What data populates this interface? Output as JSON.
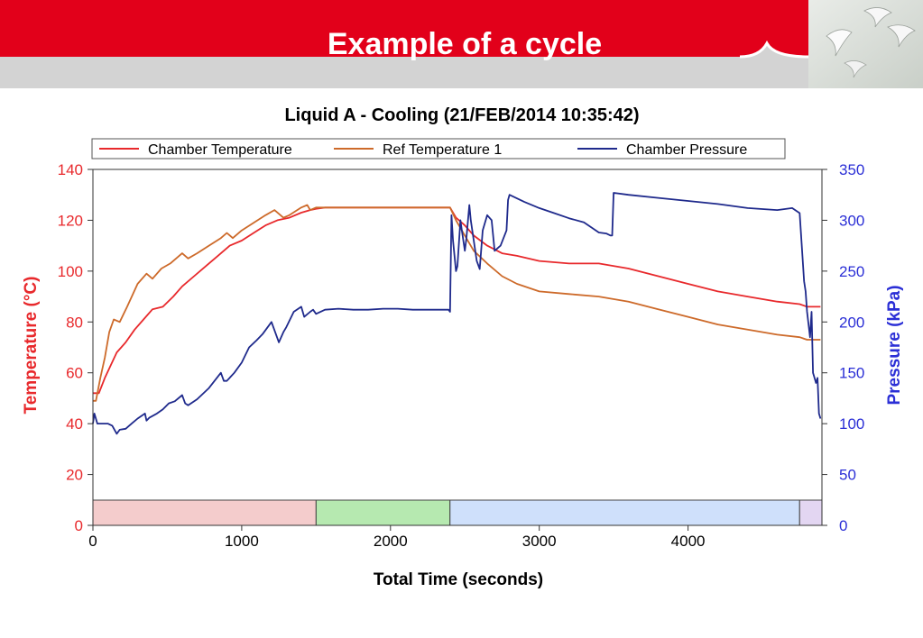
{
  "slide": {
    "title": "Example of a cycle",
    "header_color": "#e2001a",
    "band_color": "#d3d3d3"
  },
  "chart_data": {
    "type": "line",
    "title": "Liquid A - Cooling (21/FEB/2014 10:35:42)",
    "xlabel": "Total Time (seconds)",
    "ylabel": "Temperature (°C)",
    "y2label": "Pressure (kPa)",
    "xlim": [
      0,
      4900
    ],
    "ylim": [
      0,
      140
    ],
    "y2lim": [
      0,
      350
    ],
    "xticks": [
      0,
      1000,
      2000,
      3000,
      4000
    ],
    "yticks": [
      0,
      20,
      40,
      60,
      80,
      100,
      120,
      140
    ],
    "y2ticks": [
      0,
      50,
      100,
      150,
      200,
      250,
      300,
      350
    ],
    "legend_position": "top",
    "grid": false,
    "series": [
      {
        "name": "Chamber Temperature",
        "axis": "left",
        "color": "#e8292c",
        "x": [
          0,
          40,
          80,
          120,
          160,
          220,
          280,
          340,
          400,
          470,
          540,
          600,
          680,
          760,
          840,
          920,
          1000,
          1080,
          1160,
          1240,
          1320,
          1400,
          1460,
          1500,
          1560,
          1700,
          1900,
          2100,
          2300,
          2400,
          2440,
          2500,
          2560,
          2650,
          2750,
          2850,
          3000,
          3200,
          3400,
          3600,
          3800,
          4000,
          4200,
          4400,
          4600,
          4750,
          4800,
          4850,
          4890
        ],
        "y": [
          52,
          52,
          58,
          63,
          68,
          72,
          77,
          81,
          85,
          86,
          90,
          94,
          98,
          102,
          106,
          110,
          112,
          115,
          118,
          120,
          121,
          123,
          124,
          124.5,
          125,
          125,
          125,
          125,
          125,
          125,
          121,
          118,
          114,
          110,
          107,
          106,
          104,
          103,
          103,
          101,
          98,
          95,
          92,
          90,
          88,
          87,
          86,
          86,
          86
        ]
      },
      {
        "name": "Ref Temperature 1",
        "axis": "left",
        "color": "#cd6a2a",
        "x": [
          0,
          20,
          50,
          80,
          110,
          140,
          180,
          230,
          300,
          360,
          400,
          460,
          520,
          600,
          640,
          700,
          780,
          860,
          900,
          940,
          1000,
          1080,
          1160,
          1220,
          1280,
          1320,
          1400,
          1440,
          1460,
          1500,
          1560,
          1700,
          1900,
          2100,
          2300,
          2400,
          2440,
          2500,
          2560,
          2650,
          2750,
          2850,
          3000,
          3200,
          3400,
          3600,
          3800,
          4000,
          4200,
          4400,
          4600,
          4750,
          4800,
          4850,
          4890
        ],
        "y": [
          49,
          49,
          58,
          66,
          76,
          81,
          80,
          86,
          95,
          99,
          97,
          101,
          103,
          107,
          105,
          107,
          110,
          113,
          115,
          113,
          116,
          119,
          122,
          124,
          121,
          122,
          125,
          126,
          124,
          125,
          125,
          125,
          125,
          125,
          125,
          125,
          120,
          114,
          108,
          103,
          98,
          95,
          92,
          91,
          90,
          88,
          85,
          82,
          79,
          77,
          75,
          74,
          73,
          73,
          73
        ]
      },
      {
        "name": "Chamber Pressure",
        "axis": "right",
        "color": "#1f2a8c",
        "x": [
          0,
          10,
          30,
          60,
          100,
          130,
          160,
          180,
          220,
          260,
          300,
          350,
          360,
          380,
          430,
          470,
          510,
          550,
          600,
          620,
          640,
          700,
          780,
          860,
          880,
          900,
          950,
          1000,
          1050,
          1100,
          1140,
          1200,
          1250,
          1280,
          1300,
          1350,
          1400,
          1420,
          1460,
          1480,
          1500,
          1560,
          1650,
          1750,
          1850,
          1950,
          2050,
          2150,
          2250,
          2350,
          2390,
          2400,
          2410,
          2420,
          2440,
          2450,
          2470,
          2480,
          2500,
          2510,
          2530,
          2540,
          2560,
          2580,
          2600,
          2620,
          2650,
          2680,
          2700,
          2740,
          2780,
          2790,
          2800,
          2900,
          3000,
          3100,
          3200,
          3300,
          3400,
          3450,
          3480,
          3490,
          3500,
          3600,
          3800,
          4000,
          4200,
          4400,
          4600,
          4700,
          4750,
          4780,
          4790,
          4800,
          4820,
          4830,
          4840,
          4850,
          4860,
          4870,
          4880,
          4890
        ],
        "y": [
          100,
          110,
          100,
          100,
          100,
          98,
          90,
          94,
          95,
          100,
          105,
          110,
          103,
          106,
          110,
          114,
          120,
          122,
          128,
          120,
          118,
          124,
          135,
          150,
          142,
          142,
          150,
          160,
          175,
          182,
          188,
          200,
          180,
          190,
          195,
          210,
          215,
          205,
          210,
          212,
          208,
          212,
          213,
          212,
          212,
          213,
          213,
          212,
          212,
          212,
          212,
          210,
          305,
          280,
          250,
          255,
          300,
          290,
          270,
          282,
          315,
          300,
          280,
          260,
          252,
          290,
          305,
          300,
          270,
          275,
          290,
          320,
          325,
          318,
          312,
          307,
          302,
          298,
          288,
          287,
          285,
          285,
          327,
          325,
          322,
          319,
          316,
          312,
          310,
          312,
          307,
          240,
          230,
          210,
          185,
          210,
          150,
          145,
          140,
          145,
          110,
          105
        ]
      }
    ],
    "phases": [
      {
        "from": 0,
        "to": 1500,
        "color": "#f4cccc"
      },
      {
        "from": 1500,
        "to": 2400,
        "color": "#b6e9b0"
      },
      {
        "from": 2400,
        "to": 4750,
        "color": "#cfe0fb"
      },
      {
        "from": 4750,
        "to": 4900,
        "color": "#e3d6f2"
      }
    ]
  }
}
